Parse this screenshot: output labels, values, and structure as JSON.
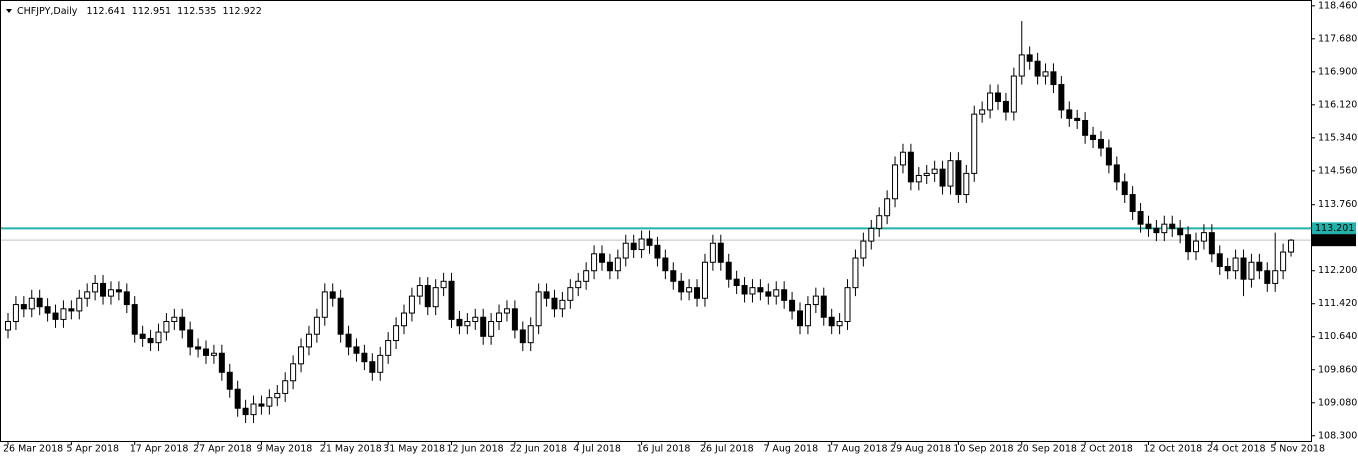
{
  "chart_data": {
    "type": "candlestick",
    "title": "CHFJPY,Daily",
    "categories": [
      "26 Mar 2018",
      null,
      null,
      null,
      null,
      null,
      null,
      null,
      "5 Apr 2018",
      null,
      null,
      null,
      null,
      null,
      null,
      null,
      "17 Apr 2018",
      null,
      null,
      null,
      null,
      null,
      null,
      null,
      "27 Apr 2018",
      null,
      null,
      null,
      null,
      null,
      null,
      null,
      "9 May 2018",
      null,
      null,
      null,
      null,
      null,
      null,
      null,
      "21 May 2018",
      null,
      null,
      null,
      null,
      null,
      null,
      null,
      "31 May 2018",
      null,
      null,
      null,
      null,
      null,
      null,
      null,
      "12 Jun 2018",
      null,
      null,
      null,
      null,
      null,
      null,
      null,
      "22 Jun 2018",
      null,
      null,
      null,
      null,
      null,
      null,
      null,
      "4 Jul 2018",
      null,
      null,
      null,
      null,
      null,
      null,
      null,
      "16 Jul 2018",
      null,
      null,
      null,
      null,
      null,
      null,
      null,
      "26 Jul 2018",
      null,
      null,
      null,
      null,
      null,
      null,
      null,
      "7 Aug 2018",
      null,
      null,
      null,
      null,
      null,
      null,
      null,
      "17 Aug 2018",
      null,
      null,
      null,
      null,
      null,
      null,
      null,
      "29 Aug 2018",
      null,
      null,
      null,
      null,
      null,
      null,
      null,
      "10 Sep 2018",
      null,
      null,
      null,
      null,
      null,
      null,
      null,
      "20 Sep 2018",
      null,
      null,
      null,
      null,
      null,
      null,
      null,
      "2 Oct 2018",
      null,
      null,
      null,
      null,
      null,
      null,
      null,
      "12 Oct 2018",
      null,
      null,
      null,
      null,
      null,
      null,
      null,
      "24 Oct 2018",
      null,
      null,
      null,
      null,
      null,
      null,
      null,
      "5 Nov 2018",
      null,
      null
    ],
    "open": [
      110.8,
      111.0,
      111.4,
      111.3,
      111.55,
      111.35,
      111.2,
      111.05,
      111.3,
      111.25,
      111.55,
      111.7,
      111.9,
      111.6,
      111.75,
      111.7,
      111.4,
      110.7,
      110.6,
      110.5,
      110.75,
      111.0,
      111.1,
      110.8,
      110.4,
      110.35,
      110.2,
      110.25,
      109.8,
      109.4,
      108.95,
      108.8,
      109.05,
      109.0,
      109.2,
      109.3,
      109.6,
      110.0,
      110.4,
      110.7,
      111.1,
      111.7,
      111.55,
      110.7,
      110.4,
      110.25,
      110.05,
      109.8,
      110.2,
      110.55,
      110.9,
      111.2,
      111.6,
      111.85,
      111.35,
      111.8,
      111.95,
      111.05,
      110.9,
      111.0,
      111.1,
      110.65,
      111.0,
      111.2,
      111.3,
      110.8,
      110.5,
      110.9,
      111.7,
      111.55,
      111.3,
      111.5,
      111.8,
      111.95,
      112.2,
      112.6,
      112.4,
      112.2,
      112.5,
      112.85,
      112.7,
      112.95,
      112.8,
      112.5,
      112.2,
      111.95,
      111.7,
      111.8,
      111.55,
      112.4,
      112.85,
      112.4,
      112.0,
      111.85,
      111.65,
      111.8,
      111.7,
      111.6,
      111.75,
      111.5,
      111.25,
      110.9,
      111.4,
      111.6,
      111.1,
      110.9,
      111.0,
      111.8,
      112.5,
      112.9,
      113.2,
      113.5,
      113.9,
      114.7,
      115.0,
      114.3,
      114.45,
      114.5,
      114.6,
      114.2,
      114.8,
      114.0,
      114.5,
      115.9,
      116.0,
      116.4,
      116.2,
      115.95,
      116.8,
      117.3,
      117.15,
      116.8,
      116.9,
      116.6,
      116.0,
      115.8,
      115.75,
      115.4,
      115.3,
      115.1,
      114.7,
      114.3,
      114.0,
      113.6,
      113.3,
      113.2,
      113.1,
      113.3,
      113.2,
      113.05,
      112.65,
      112.9,
      113.1,
      112.6,
      112.3,
      112.2,
      112.5,
      112.0,
      112.4,
      112.2,
      111.9,
      112.2,
      112.641
    ],
    "high": [
      111.2,
      111.6,
      111.6,
      111.75,
      111.75,
      111.55,
      111.4,
      111.5,
      111.5,
      111.75,
      111.9,
      112.1,
      112.1,
      111.95,
      111.95,
      111.9,
      111.6,
      110.9,
      110.8,
      110.95,
      111.2,
      111.3,
      111.3,
      111.0,
      110.6,
      110.55,
      110.45,
      110.45,
      110.0,
      109.6,
      109.15,
      109.25,
      109.25,
      109.4,
      109.5,
      109.8,
      110.2,
      110.6,
      110.9,
      111.3,
      111.9,
      111.9,
      111.75,
      110.9,
      110.6,
      110.45,
      110.25,
      110.4,
      110.75,
      111.1,
      111.4,
      111.8,
      112.05,
      112.05,
      112.0,
      112.15,
      112.15,
      111.25,
      111.2,
      111.3,
      111.3,
      111.2,
      111.4,
      111.5,
      111.5,
      111.0,
      111.1,
      111.9,
      111.9,
      111.75,
      111.7,
      112.0,
      112.15,
      112.4,
      112.8,
      112.8,
      112.6,
      112.7,
      113.05,
      113.05,
      113.15,
      113.15,
      113.0,
      112.7,
      112.4,
      112.15,
      112.0,
      112.0,
      112.6,
      113.05,
      113.05,
      112.6,
      112.2,
      112.05,
      112.0,
      112.0,
      111.9,
      111.95,
      111.95,
      111.7,
      111.45,
      111.6,
      111.8,
      111.8,
      111.3,
      111.2,
      112.0,
      112.7,
      113.1,
      113.4,
      113.7,
      114.1,
      114.9,
      115.2,
      115.2,
      114.65,
      114.7,
      114.8,
      114.8,
      115.0,
      115.0,
      114.7,
      116.1,
      116.2,
      116.6,
      116.6,
      116.4,
      117.0,
      118.1,
      117.5,
      117.35,
      117.1,
      117.1,
      116.8,
      116.2,
      116.0,
      115.95,
      115.6,
      115.5,
      115.3,
      114.9,
      114.5,
      114.2,
      113.8,
      113.5,
      113.4,
      113.5,
      113.5,
      113.4,
      113.25,
      113.1,
      113.3,
      113.3,
      112.8,
      112.5,
      112.7,
      112.7,
      112.6,
      112.6,
      112.4,
      113.1,
      112.84,
      112.951
    ],
    "low": [
      110.6,
      110.8,
      111.1,
      111.1,
      111.15,
      111.0,
      110.85,
      110.85,
      111.05,
      111.05,
      111.35,
      111.5,
      111.4,
      111.4,
      111.5,
      111.2,
      110.5,
      110.4,
      110.3,
      110.3,
      110.55,
      110.8,
      110.6,
      110.2,
      110.15,
      110.0,
      110.0,
      109.6,
      109.2,
      108.75,
      108.6,
      108.6,
      108.8,
      108.8,
      109.0,
      109.1,
      109.4,
      109.8,
      110.2,
      110.5,
      110.9,
      111.35,
      110.5,
      110.2,
      110.05,
      109.85,
      109.6,
      109.6,
      110.0,
      110.35,
      110.7,
      111.0,
      111.4,
      111.15,
      111.15,
      111.6,
      110.85,
      110.7,
      110.7,
      110.8,
      110.45,
      110.45,
      110.8,
      111.0,
      110.6,
      110.3,
      110.3,
      110.7,
      111.35,
      111.1,
      111.1,
      111.3,
      111.6,
      111.75,
      112.0,
      112.2,
      112.0,
      112.0,
      112.3,
      112.5,
      112.5,
      112.6,
      112.3,
      112.0,
      111.75,
      111.5,
      111.5,
      111.35,
      111.35,
      112.2,
      112.2,
      111.8,
      111.65,
      111.45,
      111.45,
      111.5,
      111.4,
      111.4,
      111.3,
      111.05,
      110.7,
      110.7,
      111.2,
      110.9,
      110.7,
      110.7,
      110.8,
      111.6,
      112.3,
      112.7,
      113.0,
      113.3,
      113.7,
      114.5,
      114.1,
      114.1,
      114.25,
      114.3,
      114.0,
      114.0,
      113.8,
      113.8,
      114.3,
      115.7,
      115.8,
      116.0,
      115.75,
      115.75,
      116.6,
      116.95,
      116.6,
      116.6,
      116.4,
      115.8,
      115.6,
      115.55,
      115.2,
      115.1,
      114.9,
      114.5,
      114.1,
      113.8,
      113.4,
      113.1,
      113.0,
      112.9,
      112.9,
      113.0,
      112.85,
      112.45,
      112.45,
      112.7,
      112.4,
      112.1,
      112.0,
      112.0,
      111.6,
      111.8,
      112.0,
      111.7,
      111.7,
      112.0,
      112.535
    ],
    "close": [
      111.0,
      111.4,
      111.3,
      111.55,
      111.35,
      111.2,
      111.05,
      111.3,
      111.25,
      111.55,
      111.7,
      111.9,
      111.6,
      111.75,
      111.7,
      111.4,
      110.7,
      110.6,
      110.5,
      110.75,
      111.0,
      111.1,
      110.8,
      110.4,
      110.35,
      110.2,
      110.25,
      109.8,
      109.4,
      108.95,
      108.8,
      109.05,
      109.0,
      109.2,
      109.3,
      109.6,
      110.0,
      110.4,
      110.7,
      111.1,
      111.7,
      111.55,
      110.7,
      110.4,
      110.25,
      110.05,
      109.8,
      110.2,
      110.55,
      110.9,
      111.2,
      111.6,
      111.85,
      111.35,
      111.8,
      111.95,
      111.05,
      110.9,
      111.0,
      111.1,
      110.65,
      111.0,
      111.2,
      111.3,
      110.8,
      110.5,
      110.9,
      111.7,
      111.55,
      111.3,
      111.5,
      111.8,
      111.95,
      112.2,
      112.6,
      112.4,
      112.2,
      112.5,
      112.85,
      112.7,
      112.95,
      112.8,
      112.5,
      112.2,
      111.95,
      111.7,
      111.8,
      111.55,
      112.4,
      112.85,
      112.4,
      112.0,
      111.85,
      111.65,
      111.8,
      111.7,
      111.6,
      111.75,
      111.5,
      111.25,
      110.9,
      111.4,
      111.6,
      111.1,
      110.9,
      111.0,
      111.8,
      112.5,
      112.9,
      113.2,
      113.5,
      113.9,
      114.7,
      115.0,
      114.3,
      114.45,
      114.5,
      114.6,
      114.2,
      114.8,
      114.0,
      114.5,
      115.9,
      116.0,
      116.4,
      116.2,
      115.95,
      116.8,
      117.3,
      117.15,
      116.8,
      116.9,
      116.6,
      116.0,
      115.8,
      115.75,
      115.4,
      115.3,
      115.1,
      114.7,
      114.3,
      114.0,
      113.6,
      113.3,
      113.2,
      113.1,
      113.3,
      113.2,
      113.05,
      112.65,
      112.9,
      113.1,
      112.6,
      112.3,
      112.2,
      112.5,
      112.0,
      112.4,
      112.2,
      111.9,
      112.2,
      112.641,
      112.922
    ],
    "up_color": "#ffffff",
    "down_color": "#000000",
    "ylim": [
      108.2,
      118.55
    ],
    "yticks": [
      {
        "value": 108.3,
        "label": "108.300"
      },
      {
        "value": 109.08,
        "label": "109.080"
      },
      {
        "value": 109.86,
        "label": "109.860"
      },
      {
        "value": 110.64,
        "label": "110.640"
      },
      {
        "value": 111.42,
        "label": "111.420"
      },
      {
        "value": 112.2,
        "label": "112.200"
      },
      {
        "value": 113.76,
        "label": "113.760"
      },
      {
        "value": 114.56,
        "label": "114.560"
      },
      {
        "value": 115.34,
        "label": "115.340"
      },
      {
        "value": 116.12,
        "label": "116.120"
      },
      {
        "value": 116.9,
        "label": "116.900"
      },
      {
        "value": 117.68,
        "label": "117.680"
      },
      {
        "value": 118.46,
        "label": "118.460"
      }
    ],
    "hlines": [
      {
        "value": 113.201,
        "color": "#20b2aa"
      }
    ],
    "bid_line_color": "#c0c0c0"
  }
}
